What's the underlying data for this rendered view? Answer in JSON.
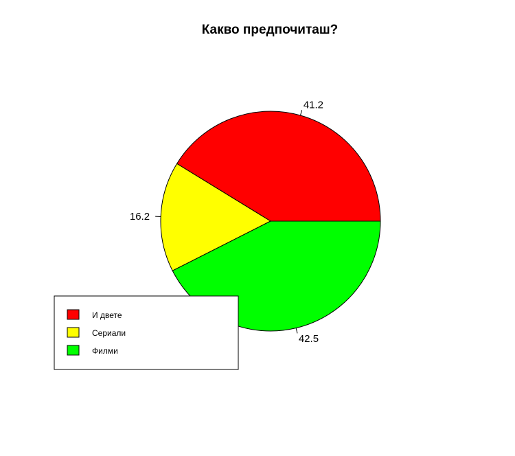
{
  "chart_data": {
    "type": "pie",
    "title": "Какво предпочиташ?",
    "categories": [
      "И двете",
      "Сериали",
      "Филми"
    ],
    "values": [
      41.2,
      16.2,
      42.5
    ],
    "labels": [
      "41.2",
      "16.2",
      "42.5"
    ],
    "colors": [
      "#ff0000",
      "#ffff00",
      "#00ff00"
    ],
    "legend": {
      "placement": "bottom-left",
      "entries": [
        "И двете",
        "Сериали",
        "Филми"
      ]
    },
    "start_angle_deg": 0,
    "direction": "counterclockwise"
  }
}
